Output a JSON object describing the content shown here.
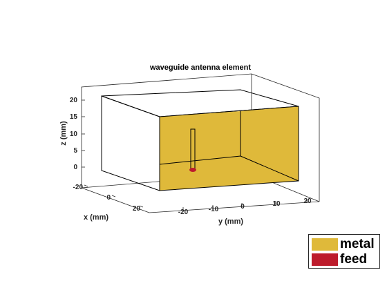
{
  "title": "waveguide antenna element",
  "colors": {
    "metal": "#dfb93a",
    "feed": "#bd1c2c"
  },
  "axes": {
    "x": {
      "label": "x (mm)",
      "ticks": [
        "-20",
        "0",
        "20"
      ]
    },
    "y": {
      "label": "y (mm)",
      "ticks": [
        "-20",
        "-10",
        "0",
        "10",
        "20"
      ]
    },
    "z": {
      "label": "z (mm)",
      "ticks": [
        "20",
        "15",
        "10",
        "5",
        "0"
      ]
    }
  },
  "legend": {
    "placement": "bottom-right",
    "items": [
      {
        "label": "metal",
        "color": "#dfb93a"
      },
      {
        "label": "feed",
        "color": "#bd1c2c"
      }
    ]
  }
}
